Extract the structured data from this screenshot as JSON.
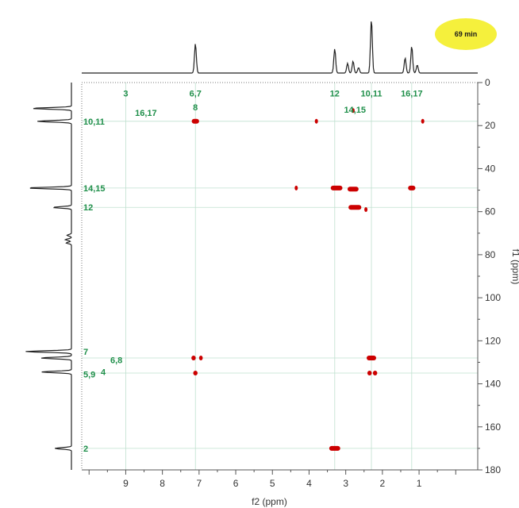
{
  "chart_data": {
    "type": "heatmap",
    "title": "",
    "xlabel": "f2 (ppm)",
    "ylabel": "f1 (ppm)",
    "xlim": [
      10.2,
      -0.6
    ],
    "ylim": [
      0,
      180
    ],
    "x_ticks": [
      9,
      8,
      7,
      6,
      5,
      4,
      3,
      2,
      1
    ],
    "y_ticks": [
      0,
      20,
      40,
      60,
      80,
      100,
      120,
      140,
      160,
      180
    ],
    "badge": {
      "text": "69 min",
      "color": "#f5f03c"
    },
    "colors": {
      "crosspeak": "#cc0000",
      "label": "#1f8f4a",
      "gridline": "#bfe0cf",
      "trace": "#222222"
    },
    "gridlines_h": [
      18,
      49,
      58,
      128,
      135,
      170
    ],
    "gridlines_v": [
      9.0,
      7.1,
      3.3,
      2.3,
      1.2
    ],
    "h_labels": [
      {
        "text": "3",
        "x": 9.0,
        "y": 5
      },
      {
        "text": "6,7",
        "x": 7.1,
        "y": 5
      },
      {
        "text": "12",
        "x": 3.3,
        "y": 5
      },
      {
        "text": "10,11",
        "x": 2.3,
        "y": 5
      },
      {
        "text": "16,17",
        "x": 1.2,
        "y": 5
      },
      {
        "text": "16,17",
        "x": 8.45,
        "y": 14
      },
      {
        "text": "8",
        "x": 7.1,
        "y": 11.5
      },
      {
        "text": "14,15",
        "x": 2.75,
        "y": 12.5
      }
    ],
    "c_labels": [
      {
        "text": "10,11",
        "y": 18
      },
      {
        "text": "14,15",
        "y": 49
      },
      {
        "text": "12",
        "y": 58
      },
      {
        "text": "7",
        "y": 125
      },
      {
        "text": "6,8",
        "y": 129
      },
      {
        "text": "5,9",
        "y": 135.5
      },
      {
        "text": "4",
        "y": 134.5
      },
      {
        "text": "2",
        "y": 170
      }
    ],
    "crosspeaks": [
      {
        "x": 7.1,
        "y": 18,
        "w": 0.2
      },
      {
        "x": 3.8,
        "y": 18,
        "w": 0.06
      },
      {
        "x": 2.8,
        "y": 13,
        "w": 0.06
      },
      {
        "x": 0.9,
        "y": 18,
        "w": 0.08
      },
      {
        "x": 4.35,
        "y": 49,
        "w": 0.06
      },
      {
        "x": 3.25,
        "y": 49,
        "w": 0.32
      },
      {
        "x": 2.8,
        "y": 49.5,
        "w": 0.3
      },
      {
        "x": 1.2,
        "y": 49,
        "w": 0.2
      },
      {
        "x": 2.75,
        "y": 58,
        "w": 0.35
      },
      {
        "x": 2.45,
        "y": 59,
        "w": 0.06
      },
      {
        "x": 7.15,
        "y": 128,
        "w": 0.12
      },
      {
        "x": 6.95,
        "y": 128,
        "w": 0.1
      },
      {
        "x": 2.3,
        "y": 128,
        "w": 0.26
      },
      {
        "x": 7.1,
        "y": 135,
        "w": 0.12
      },
      {
        "x": 2.35,
        "y": 135,
        "w": 0.12
      },
      {
        "x": 2.2,
        "y": 135,
        "w": 0.12
      },
      {
        "x": 3.3,
        "y": 170,
        "w": 0.3
      }
    ],
    "f2_peaks": [
      {
        "x": 7.1,
        "h": 0.55
      },
      {
        "x": 3.3,
        "h": 0.45
      },
      {
        "x": 2.95,
        "h": 0.18
      },
      {
        "x": 2.8,
        "h": 0.22
      },
      {
        "x": 2.65,
        "h": 0.1
      },
      {
        "x": 2.3,
        "h": 1.0
      },
      {
        "x": 1.38,
        "h": 0.28
      },
      {
        "x": 1.2,
        "h": 0.5
      },
      {
        "x": 1.05,
        "h": 0.15
      }
    ],
    "f1_peaks": [
      {
        "y": 12,
        "h": 0.9
      },
      {
        "y": 18,
        "h": 0.78
      },
      {
        "y": 49,
        "h": 1.0
      },
      {
        "y": 58,
        "h": 0.42
      },
      {
        "y": 71,
        "h": 0.1
      },
      {
        "y": 73,
        "h": 0.14
      },
      {
        "y": 74.5,
        "h": 0.12
      },
      {
        "y": 125,
        "h": 1.05
      },
      {
        "y": 128,
        "h": 0.7
      },
      {
        "y": 134.5,
        "h": 0.68
      },
      {
        "y": 170,
        "h": 0.38
      }
    ]
  }
}
